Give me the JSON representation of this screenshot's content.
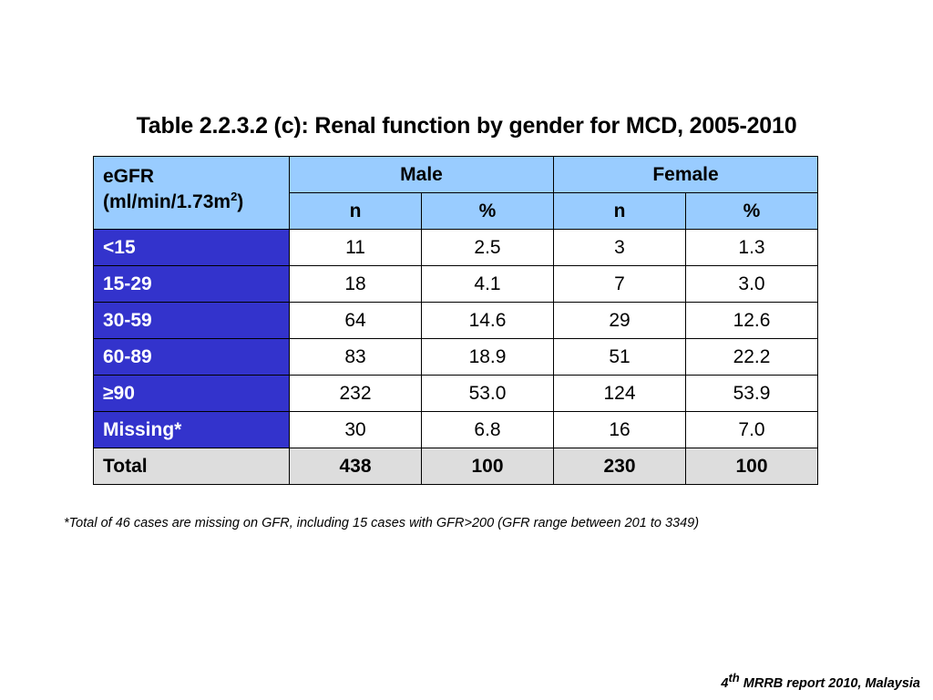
{
  "title": "Table 2.2.3.2 (c): Renal function by gender for MCD, 2005-2010",
  "table": {
    "header_label_line1": "eGFR",
    "header_label_line2_pre": "(ml/min/1.73m",
    "header_label_line2_sup": "2",
    "header_label_line2_post": ")",
    "groups": [
      "Male",
      "Female"
    ],
    "subheaders": [
      "n",
      "%",
      "n",
      "%"
    ],
    "rows": [
      {
        "label": "<15",
        "male_n": "11",
        "male_pct": "2.5",
        "female_n": "3",
        "female_pct": "1.3"
      },
      {
        "label": "15-29",
        "male_n": "18",
        "male_pct": "4.1",
        "female_n": "7",
        "female_pct": "3.0"
      },
      {
        "label": "30-59",
        "male_n": "64",
        "male_pct": "14.6",
        "female_n": "29",
        "female_pct": "12.6"
      },
      {
        "label": "60-89",
        "male_n": "83",
        "male_pct": "18.9",
        "female_n": "51",
        "female_pct": "22.2"
      },
      {
        "label": "≥90",
        "male_n": "232",
        "male_pct": "53.0",
        "female_n": "124",
        "female_pct": "53.9"
      },
      {
        "label": "Missing*",
        "male_n": "30",
        "male_pct": "6.8",
        "female_n": "16",
        "female_pct": "7.0"
      }
    ],
    "total": {
      "label": "Total",
      "male_n": "438",
      "male_pct": "100",
      "female_n": "230",
      "female_pct": "100"
    }
  },
  "footnote": "*Total of 46 cases are missing on GFR, including 15 cases with GFR>200 (GFR range between 201 to 3349)",
  "source": {
    "num": "4",
    "sup": "th",
    "rest": " MRRB report 2010, Malaysia"
  },
  "colors": {
    "header_bg": "#99ccff",
    "row_label_bg": "#3333cc",
    "total_bg": "#dddddd"
  }
}
